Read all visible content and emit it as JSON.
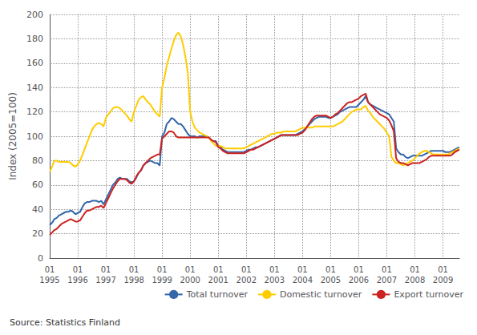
{
  "chart_data": {
    "type": "line",
    "ylabel": "Index (2005=100)",
    "categories": [
      "01\n1995",
      null,
      null,
      null,
      null,
      null,
      null,
      null,
      null,
      null,
      null,
      null,
      "01\n1996",
      null,
      null,
      null,
      null,
      null,
      null,
      null,
      null,
      null,
      null,
      null,
      "01\n1997",
      null,
      null,
      null,
      null,
      null,
      null,
      null,
      null,
      null,
      null,
      null,
      "01\n1998",
      null,
      null,
      null,
      null,
      null,
      null,
      null,
      null,
      null,
      null,
      null,
      "01\n1999",
      null,
      null,
      null,
      null,
      null,
      null,
      null,
      null,
      null,
      null,
      null,
      "01\n2000",
      null,
      null,
      null,
      null,
      null,
      null,
      null,
      null,
      null,
      null,
      null,
      "01\n2001",
      null,
      null,
      null,
      null,
      null,
      null,
      null,
      null,
      null,
      null,
      null,
      "01\n2002",
      null,
      null,
      null,
      null,
      null,
      null,
      null,
      null,
      null,
      null,
      null,
      "01\n2003",
      null,
      null,
      null,
      null,
      null,
      null,
      null,
      null,
      null,
      null,
      null,
      "01\n2004",
      null,
      null,
      null,
      null,
      null,
      null,
      null,
      null,
      null,
      null,
      null,
      "01\n2005",
      null,
      null,
      null,
      null,
      null,
      null,
      null,
      null,
      null,
      null,
      null,
      "01\n2006",
      null,
      null,
      null,
      null,
      null,
      null,
      null,
      null,
      null,
      null,
      null,
      "01\n2007",
      null,
      null,
      null,
      null,
      null,
      null,
      null,
      null,
      null,
      null,
      null,
      "01\n2008",
      null,
      null,
      null,
      null,
      null,
      null,
      null,
      null,
      null,
      null,
      null,
      "01\n2009",
      null,
      null,
      null,
      null,
      null,
      null,
      null
    ],
    "series": [
      {
        "name": "Total turnover",
        "color": "#3466aa",
        "values": [
          27,
          29,
          32,
          33,
          35,
          36,
          37,
          38,
          38,
          39,
          38,
          36,
          37,
          38,
          42,
          45,
          46,
          46,
          47,
          47,
          47,
          46,
          47,
          44,
          48,
          52,
          56,
          60,
          62,
          65,
          66,
          65,
          65,
          65,
          63,
          62,
          63,
          66,
          70,
          72,
          76,
          78,
          79,
          80,
          79,
          78,
          78,
          76,
          100,
          103,
          110,
          112,
          115,
          114,
          112,
          110,
          110,
          108,
          105,
          102,
          100,
          100,
          100,
          99,
          100,
          100,
          100,
          100,
          99,
          97,
          96,
          96,
          92,
          91,
          89,
          88,
          87,
          87,
          87,
          87,
          87,
          87,
          87,
          87,
          88,
          89,
          89,
          90,
          91,
          91,
          92,
          93,
          94,
          95,
          96,
          97,
          98,
          99,
          100,
          101,
          101,
          101,
          101,
          101,
          101,
          101,
          102,
          103,
          104,
          106,
          108,
          110,
          112,
          114,
          115,
          116,
          116,
          116,
          116,
          115,
          115,
          116,
          117,
          118,
          120,
          121,
          122,
          123,
          124,
          124,
          124,
          124,
          126,
          128,
          130,
          133,
          128,
          126,
          125,
          124,
          123,
          122,
          121,
          120,
          119,
          118,
          115,
          112,
          90,
          87,
          85,
          85,
          83,
          82,
          83,
          84,
          84,
          84,
          84,
          84,
          85,
          86,
          87,
          88,
          88,
          88,
          88,
          88,
          88,
          87,
          87,
          87,
          88,
          89,
          90,
          91
        ]
      },
      {
        "name": "Domestic turnover",
        "color": "#ffcc00",
        "values": [
          71,
          75,
          80,
          80,
          79,
          79,
          79,
          79,
          79,
          78,
          76,
          75,
          77,
          80,
          85,
          90,
          95,
          100,
          105,
          108,
          110,
          111,
          110,
          108,
          115,
          118,
          120,
          123,
          124,
          124,
          123,
          121,
          119,
          117,
          114,
          112,
          120,
          125,
          130,
          132,
          133,
          130,
          128,
          126,
          123,
          120,
          118,
          116,
          140,
          148,
          158,
          165,
          172,
          178,
          183,
          185,
          182,
          175,
          165,
          152,
          120,
          112,
          107,
          105,
          103,
          102,
          101,
          100,
          99,
          96,
          94,
          92,
          92,
          92,
          91,
          90,
          90,
          90,
          90,
          90,
          90,
          90,
          90,
          90,
          91,
          92,
          93,
          94,
          95,
          96,
          97,
          98,
          99,
          100,
          101,
          102,
          102,
          103,
          103,
          103,
          104,
          104,
          104,
          104,
          104,
          104,
          105,
          106,
          107,
          107,
          107,
          107,
          107,
          108,
          108,
          108,
          108,
          108,
          108,
          108,
          108,
          108,
          109,
          110,
          111,
          112,
          114,
          116,
          118,
          120,
          121,
          122,
          122,
          122,
          124,
          125,
          121,
          119,
          116,
          114,
          112,
          110,
          108,
          106,
          103,
          100,
          83,
          80,
          78,
          78,
          77,
          76,
          77,
          78,
          79,
          80,
          82,
          84,
          86,
          87,
          88,
          88,
          87,
          86,
          85,
          85,
          85,
          85,
          85,
          85,
          85,
          86,
          87,
          88,
          89,
          90
        ]
      },
      {
        "name": "Export turnover",
        "color": "#cc2222",
        "values": [
          19,
          21,
          23,
          24,
          26,
          28,
          29,
          30,
          31,
          32,
          31,
          30,
          30,
          31,
          34,
          37,
          39,
          39,
          40,
          41,
          42,
          42,
          43,
          41,
          45,
          49,
          53,
          57,
          60,
          63,
          65,
          65,
          65,
          64,
          62,
          61,
          63,
          67,
          70,
          72,
          76,
          78,
          80,
          82,
          83,
          84,
          85,
          85,
          98,
          100,
          102,
          104,
          104,
          103,
          100,
          99,
          99,
          99,
          99,
          99,
          99,
          99,
          99,
          99,
          99,
          99,
          99,
          99,
          99,
          97,
          96,
          95,
          91,
          90,
          88,
          87,
          86,
          86,
          86,
          86,
          86,
          86,
          86,
          86,
          87,
          88,
          89,
          89,
          90,
          91,
          92,
          93,
          94,
          95,
          96,
          97,
          98,
          99,
          100,
          101,
          101,
          101,
          101,
          101,
          101,
          101,
          101,
          102,
          103,
          105,
          108,
          111,
          114,
          116,
          117,
          117,
          117,
          117,
          117,
          116,
          115,
          116,
          118,
          119,
          121,
          123,
          125,
          127,
          128,
          128,
          129,
          130,
          131,
          133,
          134,
          135,
          128,
          126,
          124,
          122,
          120,
          118,
          117,
          116,
          115,
          113,
          109,
          104,
          82,
          79,
          78,
          78,
          77,
          76,
          77,
          78,
          78,
          78,
          78,
          79,
          80,
          81,
          83,
          84,
          84,
          84,
          84,
          84,
          84,
          84,
          84,
          84,
          85,
          87,
          88,
          89
        ]
      }
    ],
    "ylim": [
      0,
      200
    ],
    "yticks": [
      0,
      20,
      40,
      60,
      80,
      100,
      120,
      140,
      160,
      180,
      200
    ],
    "grid": true,
    "legend": "lower right",
    "annotations": [
      "Source: Statistics Finland"
    ]
  }
}
